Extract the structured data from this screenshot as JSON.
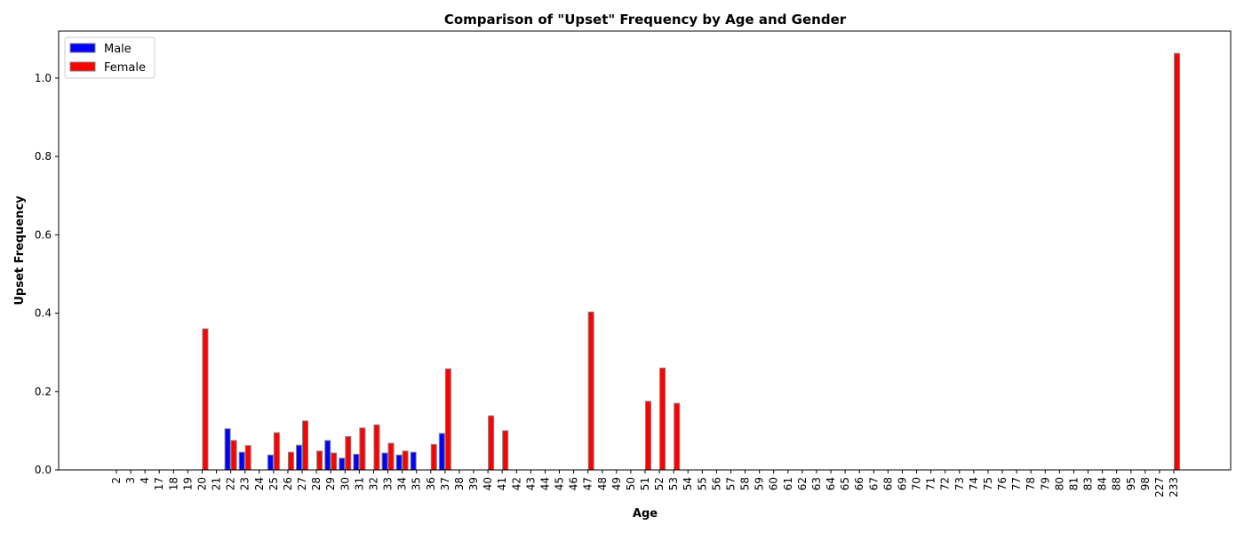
{
  "chart_data": {
    "type": "bar",
    "title": "Comparison of \"Upset\" Frequency by Age and Gender",
    "xlabel": "Age",
    "ylabel": "Upset Frequency",
    "ylim": [
      0,
      1.12
    ],
    "yticks": [
      "0.0",
      "0.2",
      "0.4",
      "0.6",
      "0.8",
      "1.0"
    ],
    "grid": false,
    "legend_position": "top-left",
    "categories": [
      "2",
      "3",
      "4",
      "17",
      "18",
      "19",
      "20",
      "21",
      "22",
      "23",
      "24",
      "25",
      "26",
      "27",
      "28",
      "29",
      "30",
      "31",
      "32",
      "33",
      "34",
      "35",
      "36",
      "37",
      "38",
      "39",
      "40",
      "41",
      "42",
      "43",
      "44",
      "45",
      "46",
      "47",
      "48",
      "49",
      "50",
      "51",
      "52",
      "53",
      "54",
      "55",
      "56",
      "57",
      "58",
      "59",
      "60",
      "61",
      "62",
      "63",
      "64",
      "65",
      "66",
      "67",
      "68",
      "69",
      "70",
      "71",
      "72",
      "73",
      "74",
      "75",
      "76",
      "77",
      "78",
      "79",
      "80",
      "81",
      "83",
      "84",
      "88",
      "95",
      "98",
      "227",
      "233"
    ],
    "series": [
      {
        "name": "Male",
        "color": "#0000ff",
        "values": [
          0,
          0,
          0,
          0,
          0,
          0,
          0,
          0,
          0.105,
          0.045,
          0,
          0.038,
          0,
          0.063,
          0,
          0.075,
          0.03,
          0.04,
          0,
          0.043,
          0.038,
          0.045,
          0,
          0.093,
          0,
          0,
          0,
          0,
          0,
          0,
          0,
          0,
          0,
          0,
          0,
          0,
          0,
          0,
          0,
          0,
          0,
          0,
          0,
          0,
          0,
          0,
          0,
          0,
          0,
          0,
          0,
          0,
          0,
          0,
          0,
          0,
          0,
          0,
          0,
          0,
          0,
          0,
          0,
          0,
          0,
          0,
          0,
          0,
          0,
          0,
          0,
          0,
          0,
          0,
          0
        ]
      },
      {
        "name": "Female",
        "color": "#ff0000",
        "values": [
          0,
          0,
          0,
          0,
          0,
          0,
          0.36,
          0,
          0.075,
          0.062,
          0,
          0.095,
          0.045,
          0.125,
          0.048,
          0.043,
          0.085,
          0.107,
          0.115,
          0.068,
          0.048,
          0,
          0.065,
          0.258,
          0,
          0,
          0.138,
          0.1,
          0,
          0,
          0,
          0,
          0,
          0.403,
          0,
          0,
          0,
          0.175,
          0.26,
          0.17,
          0,
          0,
          0,
          0,
          0,
          0,
          0,
          0,
          0,
          0,
          0,
          0,
          0,
          0,
          0,
          0,
          0,
          0,
          0,
          0,
          0,
          0,
          0,
          0,
          0,
          0,
          0,
          0,
          0,
          0,
          0,
          0,
          0,
          0,
          1.063
        ]
      }
    ]
  }
}
